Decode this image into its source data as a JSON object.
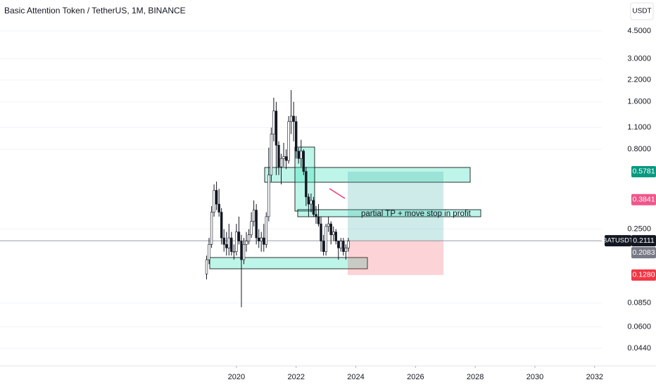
{
  "chart_data": {
    "type": "candlestick",
    "title": "Basic Attention Token / TetherUS, 1M, BINANCE",
    "currency": "USDT",
    "symbol": "BATUSDT",
    "log_scale": true,
    "grid": true,
    "up_color": "#ffffff",
    "down_color": "#131722",
    "x": [
      2019,
      2019.083,
      2019.167,
      2019.25,
      2019.333,
      2019.417,
      2019.5,
      2019.583,
      2019.667,
      2019.75,
      2019.833,
      2019.917,
      2020,
      2020.083,
      2020.167,
      2020.25,
      2020.333,
      2020.417,
      2020.5,
      2020.583,
      2020.667,
      2020.75,
      2020.833,
      2020.917,
      2021,
      2021.083,
      2021.167,
      2021.25,
      2021.333,
      2021.417,
      2021.5,
      2021.583,
      2021.667,
      2021.75,
      2021.833,
      2021.917,
      2022,
      2022.083,
      2022.167,
      2022.25,
      2022.333,
      2022.417,
      2022.5,
      2022.583,
      2022.667,
      2022.75,
      2022.833,
      2022.917,
      2023,
      2023.083,
      2023.167,
      2023.25,
      2023.333,
      2023.417,
      2023.5,
      2023.583,
      2023.667,
      2023.75
    ],
    "open": [
      0.13,
      0.16,
      0.2,
      0.32,
      0.44,
      0.36,
      0.32,
      0.22,
      0.2,
      0.19,
      0.22,
      0.18,
      0.18,
      0.24,
      0.21,
      0.16,
      0.2,
      0.21,
      0.23,
      0.28,
      0.33,
      0.22,
      0.21,
      0.22,
      0.2,
      0.3,
      0.55,
      1.0,
      1.4,
      0.85,
      0.62,
      0.7,
      0.72,
      0.68,
      1.2,
      1.3,
      1.2,
      0.78,
      0.7,
      0.78,
      0.58,
      0.4,
      0.36,
      0.38,
      0.31,
      0.3,
      0.27,
      0.21,
      0.18,
      0.26,
      0.27,
      0.23,
      0.24,
      0.21,
      0.19,
      0.21,
      0.18,
      0.19
    ],
    "high": [
      0.17,
      0.22,
      0.35,
      0.48,
      0.5,
      0.45,
      0.34,
      0.25,
      0.24,
      0.27,
      0.24,
      0.2,
      0.27,
      0.3,
      0.23,
      0.22,
      0.24,
      0.25,
      0.32,
      0.38,
      0.36,
      0.25,
      0.24,
      0.27,
      0.32,
      0.82,
      1.1,
      1.7,
      1.6,
      0.9,
      0.75,
      0.88,
      0.8,
      1.3,
      1.9,
      1.6,
      1.3,
      0.82,
      0.92,
      0.8,
      0.62,
      0.42,
      0.42,
      0.4,
      0.35,
      0.36,
      0.3,
      0.23,
      0.27,
      0.3,
      0.28,
      0.26,
      0.25,
      0.21,
      0.22,
      0.22,
      0.2,
      0.22
    ],
    "low": [
      0.12,
      0.15,
      0.19,
      0.3,
      0.33,
      0.3,
      0.2,
      0.18,
      0.17,
      0.17,
      0.17,
      0.16,
      0.17,
      0.2,
      0.08,
      0.15,
      0.18,
      0.2,
      0.22,
      0.26,
      0.2,
      0.19,
      0.18,
      0.18,
      0.19,
      0.28,
      0.5,
      0.9,
      0.55,
      0.55,
      0.48,
      0.62,
      0.6,
      0.65,
      1.0,
      0.9,
      0.7,
      0.65,
      0.62,
      0.55,
      0.35,
      0.3,
      0.32,
      0.3,
      0.27,
      0.26,
      0.18,
      0.17,
      0.17,
      0.24,
      0.2,
      0.21,
      0.2,
      0.16,
      0.18,
      0.17,
      0.16,
      0.18
    ],
    "close": [
      0.16,
      0.2,
      0.32,
      0.44,
      0.36,
      0.32,
      0.22,
      0.2,
      0.19,
      0.22,
      0.18,
      0.18,
      0.24,
      0.21,
      0.16,
      0.2,
      0.21,
      0.23,
      0.28,
      0.33,
      0.22,
      0.21,
      0.22,
      0.2,
      0.3,
      0.55,
      1.0,
      1.4,
      0.85,
      0.62,
      0.7,
      0.72,
      0.68,
      1.2,
      1.3,
      1.2,
      0.78,
      0.7,
      0.78,
      0.58,
      0.4,
      0.36,
      0.38,
      0.31,
      0.3,
      0.27,
      0.21,
      0.18,
      0.26,
      0.27,
      0.23,
      0.24,
      0.21,
      0.19,
      0.21,
      0.18,
      0.19,
      0.21
    ],
    "xlim": [
      2012.08,
      2032.24
    ],
    "xticks": [
      2020,
      2022,
      2024,
      2026,
      2028,
      2030,
      2032
    ],
    "ylim": [
      0.034,
      7.07
    ],
    "yticks": [
      {
        "value": 4.5,
        "label": "4.5000"
      },
      {
        "value": 3,
        "label": "3.0000"
      },
      {
        "value": 2.2,
        "label": "2.2000"
      },
      {
        "value": 1.6,
        "label": "1.6000"
      },
      {
        "value": 1.1,
        "label": "1.1000"
      },
      {
        "value": 0.8,
        "label": "0.8000"
      },
      {
        "value": 0.25,
        "label": "0.2500"
      },
      {
        "value": 0.085,
        "label": "0.0850"
      },
      {
        "value": 0.06,
        "label": "0.0600"
      },
      {
        "value": 0.044,
        "label": "0.0440"
      }
    ],
    "last_price": 0.2111,
    "target": 0.5781,
    "level": 0.3841,
    "marker": 0.2083,
    "stop": {
      "value": 0.128,
      "label": "0.1280"
    },
    "annotation": "partial TP + move stop in profit"
  }
}
